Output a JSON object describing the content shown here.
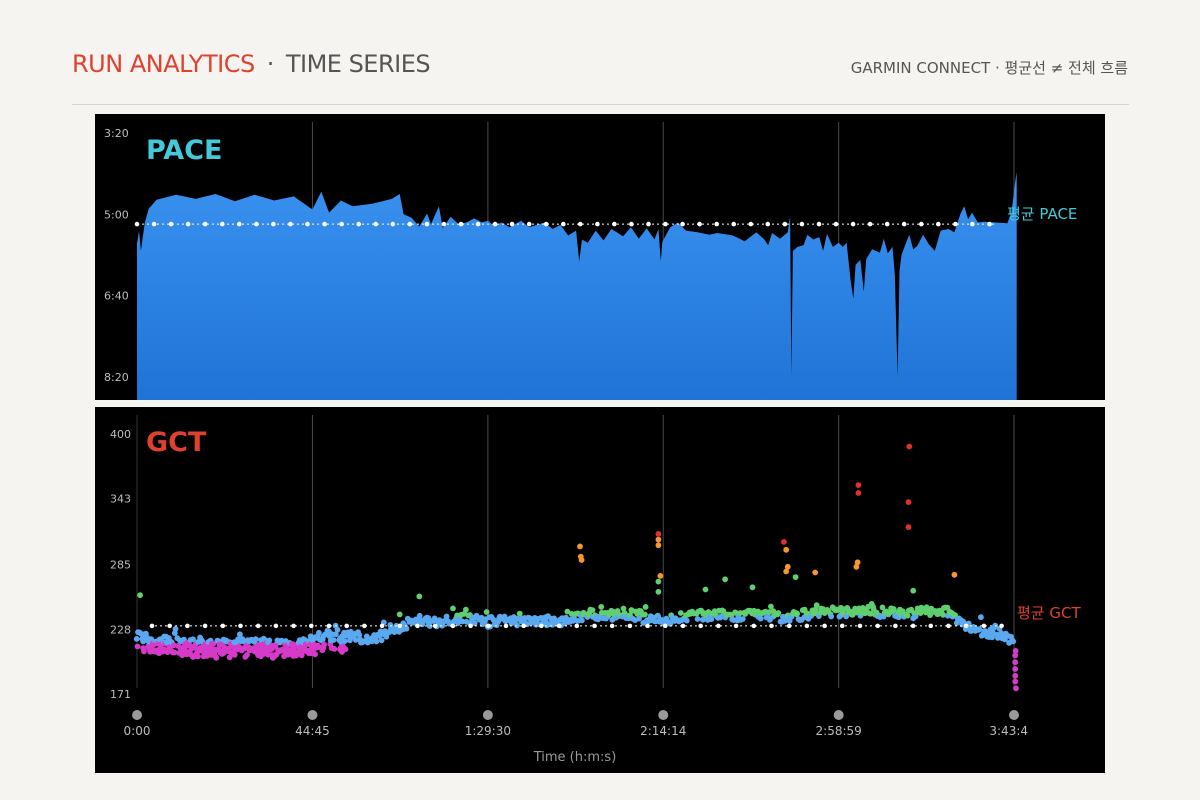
{
  "header": {
    "title": "RUN ANALYTICS",
    "separator": "·",
    "subtitle": "TIME SERIES",
    "right_text": "GARMIN CONNECT · 평균선 ≠ 전체 흐름"
  },
  "colors": {
    "pace_fill": "#2f86e6",
    "pace_title": "#45c8d8",
    "gct_title": "#e0412f",
    "gct_avg_label": "#e0412f",
    "gct_blue": "#5aa9f0",
    "gct_green": "#5fcf6f",
    "gct_orange": "#f5962e",
    "gct_red": "#e0312a",
    "gct_magenta": "#d63ac8",
    "panel_bg": "#000000"
  },
  "chart_data": [
    {
      "type": "area",
      "title": "PACE",
      "avg_label": "평균 PACE",
      "y_ticks": [
        "3:20",
        "5:00",
        "6:40",
        "8:20"
      ],
      "y_tick_seconds": [
        200,
        300,
        400,
        500
      ],
      "ylim_seconds": [
        200,
        500
      ],
      "y_inverted": true,
      "x_tick_labels": [
        "0:00",
        "44:45",
        "1:29:30",
        "2:14:14",
        "2:58:59",
        "3:43:4"
      ],
      "x_tick_minutes": [
        0,
        44.75,
        89.5,
        134.23,
        178.98,
        223.7
      ],
      "xlim_minutes": [
        0,
        223.7
      ],
      "avg_pace_seconds": 312,
      "series_pace_seconds": [
        [
          0,
          336
        ],
        [
          0.5,
          320
        ],
        [
          1,
          345
        ],
        [
          2,
          310
        ],
        [
          3,
          293
        ],
        [
          5,
          282
        ],
        [
          10,
          276
        ],
        [
          15,
          281
        ],
        [
          20,
          275
        ],
        [
          25,
          284
        ],
        [
          30,
          276
        ],
        [
          35,
          283
        ],
        [
          40,
          278
        ],
        [
          44.75,
          294
        ],
        [
          46,
          282
        ],
        [
          47,
          272
        ],
        [
          49,
          298
        ],
        [
          52,
          283
        ],
        [
          55,
          290
        ],
        [
          60,
          287
        ],
        [
          65,
          281
        ],
        [
          67,
          275
        ],
        [
          68,
          300
        ],
        [
          70,
          304
        ],
        [
          72,
          315
        ],
        [
          74,
          299
        ],
        [
          75,
          312
        ],
        [
          77,
          290
        ],
        [
          78,
          317
        ],
        [
          80,
          303
        ],
        [
          82,
          312
        ],
        [
          84,
          310
        ],
        [
          86,
          305
        ],
        [
          88,
          310
        ],
        [
          89.5,
          308
        ],
        [
          91,
          314
        ],
        [
          93,
          310
        ],
        [
          95,
          316
        ],
        [
          98,
          308
        ],
        [
          100,
          316
        ],
        [
          104,
          310
        ],
        [
          106,
          318
        ],
        [
          108,
          313
        ],
        [
          110,
          326
        ],
        [
          112,
          320
        ],
        [
          112.8,
          358
        ],
        [
          113.5,
          331
        ],
        [
          115,
          335
        ],
        [
          117,
          320
        ],
        [
          119,
          332
        ],
        [
          121,
          318
        ],
        [
          124,
          327
        ],
        [
          126,
          316
        ],
        [
          128,
          330
        ],
        [
          130,
          317
        ],
        [
          132,
          331
        ],
        [
          133,
          318
        ],
        [
          133.6,
          358
        ],
        [
          134,
          334
        ],
        [
          136,
          316
        ],
        [
          138,
          310
        ],
        [
          140,
          320
        ],
        [
          143,
          322
        ],
        [
          146,
          325
        ],
        [
          148,
          323
        ],
        [
          152,
          326
        ],
        [
          155,
          333
        ],
        [
          158,
          322
        ],
        [
          160,
          331
        ],
        [
          161,
          338
        ],
        [
          162,
          323
        ],
        [
          164,
          330
        ],
        [
          166,
          322
        ],
        [
          166.6,
          302
        ],
        [
          166.9,
          499
        ],
        [
          167.3,
          345
        ],
        [
          168.5,
          340
        ],
        [
          170,
          338
        ],
        [
          171,
          325
        ],
        [
          172.5,
          331
        ],
        [
          174,
          328
        ],
        [
          175,
          345
        ],
        [
          176,
          324
        ],
        [
          177.5,
          340
        ],
        [
          178.98,
          335
        ],
        [
          180,
          340
        ],
        [
          181,
          335
        ],
        [
          182,
          380
        ],
        [
          182.7,
          404
        ],
        [
          183.3,
          362
        ],
        [
          184.5,
          356
        ],
        [
          185.4,
          395
        ],
        [
          186,
          355
        ],
        [
          187.5,
          343
        ],
        [
          189.5,
          347
        ],
        [
          190.5,
          330
        ],
        [
          191.5,
          348
        ],
        [
          192.7,
          340
        ],
        [
          193.3,
          374
        ],
        [
          194,
          499
        ],
        [
          194.5,
          370
        ],
        [
          195,
          350
        ],
        [
          196,
          337
        ],
        [
          197,
          325
        ],
        [
          198,
          343
        ],
        [
          199,
          339
        ],
        [
          200.5,
          325
        ],
        [
          202,
          337
        ],
        [
          203.5,
          345
        ],
        [
          205,
          320
        ],
        [
          207,
          318
        ],
        [
          208.5,
          322
        ],
        [
          210,
          300
        ],
        [
          211,
          290
        ],
        [
          212,
          306
        ],
        [
          213,
          298
        ],
        [
          214.5,
          310
        ],
        [
          216,
          309
        ],
        [
          219,
          310
        ],
        [
          222,
          311
        ],
        [
          223,
          298
        ],
        [
          223.5,
          281
        ],
        [
          224,
          260
        ],
        [
          224.4,
          248
        ]
      ]
    },
    {
      "type": "scatter",
      "title": "GCT",
      "avg_label": "평균 GCT",
      "y_ticks": [
        "400",
        "343",
        "285",
        "228",
        "171"
      ],
      "y_tick_values": [
        400,
        343,
        285,
        228,
        171
      ],
      "ylim": [
        171,
        400
      ],
      "x_axis_label": "Time (h:m:s)",
      "x_tick_labels": [
        "0:00",
        "44:45",
        "1:29:30",
        "2:14:14",
        "2:58:59",
        "3:43:4"
      ],
      "x_tick_minutes": [
        0,
        44.75,
        89.5,
        134.23,
        178.98,
        223.7
      ],
      "xlim_minutes": [
        0,
        223.7
      ],
      "avg_gct_ms": 231,
      "trend_gct_ms": [
        [
          0,
          224
        ],
        [
          3,
          219
        ],
        [
          10,
          216
        ],
        [
          20,
          214
        ],
        [
          30,
          216
        ],
        [
          40,
          214
        ],
        [
          44.75,
          218
        ],
        [
          48,
          224
        ],
        [
          52,
          220
        ],
        [
          56,
          222
        ],
        [
          60,
          218
        ],
        [
          64,
          226
        ],
        [
          68,
          232
        ],
        [
          72,
          236
        ],
        [
          76,
          234
        ],
        [
          80,
          237
        ],
        [
          84,
          238
        ],
        [
          88,
          236
        ],
        [
          89.5,
          234
        ],
        [
          92,
          236
        ],
        [
          96,
          234
        ],
        [
          100,
          235
        ],
        [
          104,
          236
        ],
        [
          108,
          233
        ],
        [
          112,
          238
        ],
        [
          116,
          242
        ],
        [
          120,
          240
        ],
        [
          124,
          242
        ],
        [
          128,
          240
        ],
        [
          132,
          238
        ],
        [
          136,
          236
        ],
        [
          140,
          240
        ],
        [
          144,
          240
        ],
        [
          148,
          241
        ],
        [
          152,
          239
        ],
        [
          156,
          240
        ],
        [
          160,
          242
        ],
        [
          164,
          238
        ],
        [
          168,
          240
        ],
        [
          172,
          242
        ],
        [
          176,
          243
        ],
        [
          178.98,
          243
        ],
        [
          182,
          244
        ],
        [
          186,
          244
        ],
        [
          190,
          243
        ],
        [
          194,
          243
        ],
        [
          198,
          242
        ],
        [
          202,
          244
        ],
        [
          206,
          245
        ],
        [
          208,
          240
        ],
        [
          212,
          231
        ],
        [
          216,
          226
        ],
        [
          220,
          224
        ],
        [
          223,
          218
        ],
        [
          224,
          209
        ]
      ],
      "outliers_gct_ms": [
        [
          0.8,
          258,
          "green"
        ],
        [
          113,
          301,
          "orange"
        ],
        [
          113.2,
          292,
          "orange"
        ],
        [
          113.4,
          289,
          "orange"
        ],
        [
          133,
          312,
          "red"
        ],
        [
          133,
          307,
          "orange"
        ],
        [
          133,
          302,
          "orange"
        ],
        [
          133.5,
          275,
          "orange"
        ],
        [
          133,
          270,
          "green"
        ],
        [
          133,
          261,
          "green"
        ],
        [
          165,
          305,
          "red"
        ],
        [
          165.6,
          298,
          "orange"
        ],
        [
          166,
          283,
          "orange"
        ],
        [
          165.6,
          279,
          "orange"
        ],
        [
          168,
          274,
          "green"
        ],
        [
          173,
          278,
          "orange"
        ],
        [
          184,
          355,
          "red"
        ],
        [
          184,
          348,
          "red"
        ],
        [
          183.8,
          287,
          "orange"
        ],
        [
          183.5,
          283,
          "orange"
        ],
        [
          197,
          389,
          "red"
        ],
        [
          196.8,
          340,
          "red"
        ],
        [
          196.8,
          318,
          "red"
        ],
        [
          198,
          262,
          "green"
        ],
        [
          208.5,
          276,
          "orange"
        ],
        [
          72,
          257,
          "green"
        ],
        [
          145,
          263,
          "green"
        ],
        [
          150,
          272,
          "green"
        ],
        [
          157,
          265,
          "green"
        ],
        [
          224,
          205,
          "magenta"
        ],
        [
          224,
          199,
          "magenta"
        ],
        [
          224,
          193,
          "magenta"
        ],
        [
          224,
          187,
          "magenta"
        ],
        [
          224,
          182,
          "magenta"
        ],
        [
          224.2,
          176,
          "magenta"
        ],
        [
          224.1,
          209,
          "magenta"
        ]
      ]
    }
  ]
}
